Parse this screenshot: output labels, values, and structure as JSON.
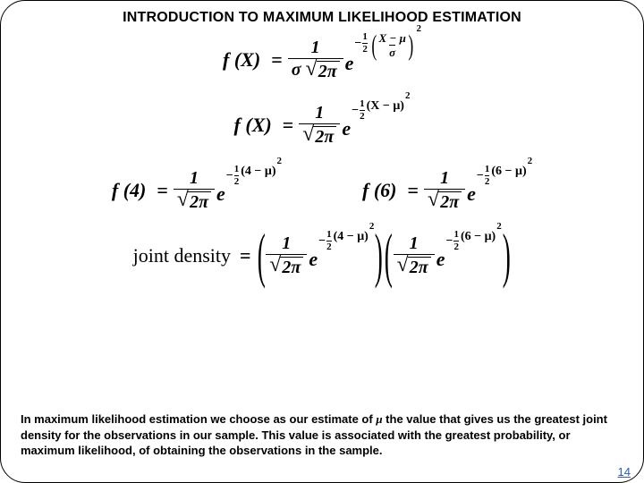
{
  "title": "INTRODUCTION TO MAXIMUM LIKELIHOOD ESTIMATION",
  "eq": {
    "fX": "f (X)",
    "f4": "f (4)",
    "f6": "f (6)",
    "one": "1",
    "two": "2",
    "sigma": "σ",
    "twopi": "2π",
    "e": "e",
    "Xmmu": "X − μ",
    "Xmmu_plain": "(X − μ)",
    "fourmmu": "(4 − μ)",
    "sixmmu": "(6 − μ)",
    "sq": "2",
    "jointLabel": "joint density",
    "eq": "="
  },
  "caption": {
    "p1": "In maximum likelihood estimation we choose as our estimate of ",
    "mu": "μ",
    "p2": " the value that gives us the greatest joint density for the observations in our sample.  This value is associated with the greatest probability, or maximum likelihood, of obtaining the observations in the sample."
  },
  "pagenum": "14"
}
